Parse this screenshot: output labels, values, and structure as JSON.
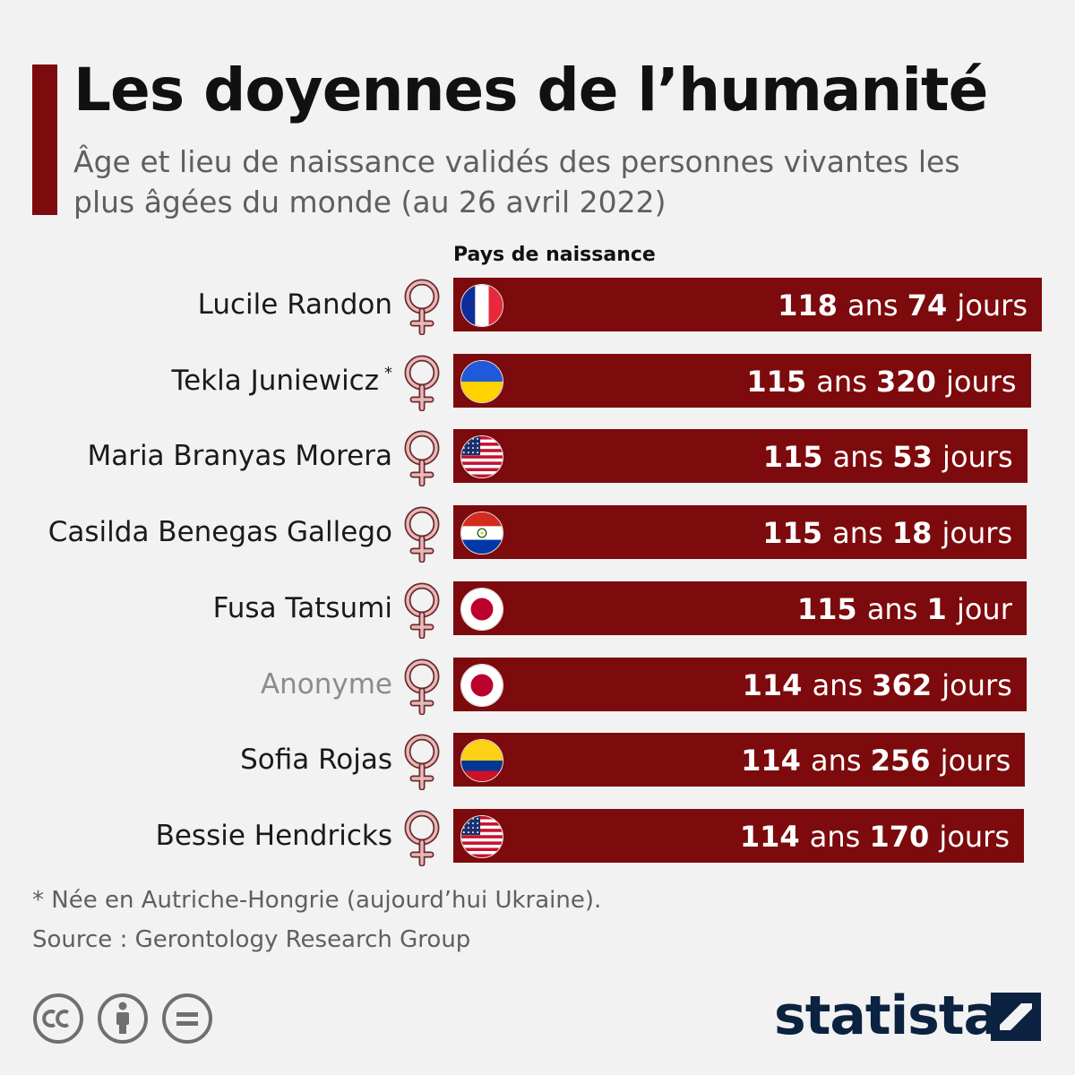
{
  "header": {
    "title": "Les doyennes de l’humanité",
    "subtitle": "Âge et lieu de naissance validés des personnes vivantes les plus âgées du monde (au 26 avril 2022)"
  },
  "column_header": "Pays de naissance",
  "footnote": "* Née en Autriche-Hongrie (aujourd’hui Ukraine).",
  "source": "Source : Gerontology Research Group",
  "brand": {
    "name": "statista"
  },
  "license_icons": [
    "cc-icon",
    "attribution-icon",
    "no-derivatives-icon"
  ],
  "colors": {
    "bar": "#7d0a0d",
    "accent": "#7d0a0d",
    "female_symbol": "#c98b8e",
    "brand": "#0b2240"
  },
  "chart_data": {
    "type": "bar",
    "orientation": "horizontal",
    "title": "Les doyennes de l’humanité",
    "subtitle": "Âge et lieu de naissance validés des personnes vivantes les plus âgées du monde (au 26 avril 2022)",
    "categories": [
      "Lucile Randon",
      "Tekla Juniewicz",
      "Maria Branyas Morera",
      "Casilda Benegas Gallego",
      "Fusa Tatsumi",
      "Anonyme",
      "Sofia Rojas",
      "Bessie Hendricks"
    ],
    "series": [
      {
        "values": [
          {
            "years": 118,
            "days": 74,
            "label": "118 ans 74 jours",
            "country": "France",
            "flag": "france-flag-icon",
            "muted": false,
            "note": ""
          },
          {
            "years": 115,
            "days": 320,
            "label": "115 ans 320 jours",
            "country": "Ukraine",
            "flag": "ukraine-flag-icon",
            "muted": false,
            "note": "*"
          },
          {
            "years": 115,
            "days": 53,
            "label": "115 ans 53 jours",
            "country": "États-Unis",
            "flag": "usa-flag-icon",
            "muted": false,
            "note": ""
          },
          {
            "years": 115,
            "days": 18,
            "label": "115 ans 18 jours",
            "country": "Paraguay",
            "flag": "paraguay-flag-icon",
            "muted": false,
            "note": ""
          },
          {
            "years": 115,
            "days": 1,
            "label": "115 ans 1 jour",
            "country": "Japon",
            "flag": "japan-flag-icon",
            "muted": false,
            "note": ""
          },
          {
            "years": 114,
            "days": 362,
            "label": "114 ans 362 jours",
            "country": "Japon",
            "flag": "japan-flag-icon",
            "muted": true,
            "note": ""
          },
          {
            "years": 114,
            "days": 256,
            "label": "114 ans 256 jours",
            "country": "Colombie",
            "flag": "colombia-flag-icon",
            "muted": false,
            "note": ""
          },
          {
            "years": 114,
            "days": 170,
            "label": "114 ans 170 jours",
            "country": "États-Unis",
            "flag": "usa-flag-icon",
            "muted": false,
            "note": ""
          }
        ]
      }
    ],
    "gender_icon": "female-symbol-icon",
    "grid": false,
    "legend": "none"
  }
}
